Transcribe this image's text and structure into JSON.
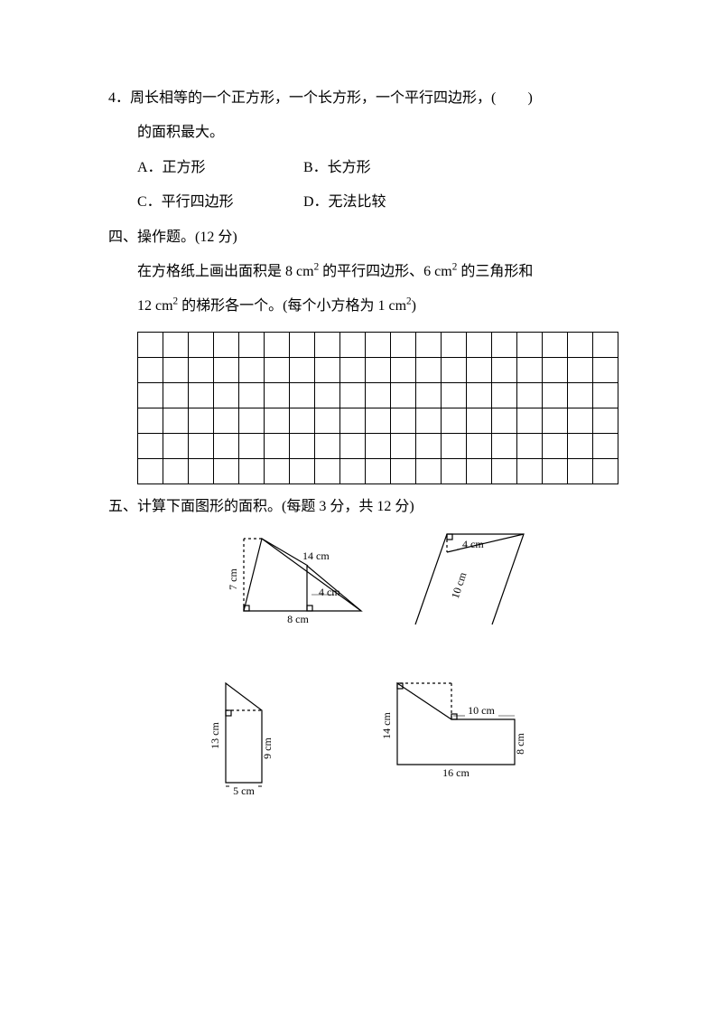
{
  "q4": {
    "num": "4．",
    "stem_a": "周长相等的一个正方形，一个长方形，一个平行四边形，(",
    "stem_blank": "　　",
    "stem_b": ")",
    "stem_line2": "的面积最大。",
    "optA": "A．正方形",
    "optB": "B．长方形",
    "optC": "C．平行四边形",
    "optD": "D．无法比较"
  },
  "s4": {
    "title": "四、操作题。(12 分)",
    "body_a": "在方格纸上画出面积是 8 cm",
    "sq": "2",
    "body_b": " 的平行四边形、6 cm",
    "body_c": " 的三角形和",
    "body_line2_a": "12 cm",
    "body_line2_b": " 的梯形各一个。(每个小方格为 1 cm",
    "body_line2_c": ")",
    "grid_cols": 19,
    "grid_rows": 6
  },
  "s5": {
    "title": "五、计算下面图形的面积。(每题 3 分，共 12 分)",
    "fig1": {
      "l_7cm": "7 cm",
      "l_14cm": "14 cm",
      "l_4cm": "4 cm",
      "l_8cm": "8 cm"
    },
    "fig2": {
      "l_4cm": "4 cm",
      "l_10cm": "10 cm"
    },
    "fig3": {
      "l_13cm": "13 cm",
      "l_9cm": "9 cm",
      "l_5cm": "5 cm"
    },
    "fig4": {
      "l_10cm": "10 cm",
      "l_8cm": "8 cm",
      "l_14cm": "14 cm",
      "l_16cm": "16 cm"
    }
  },
  "style": {
    "stroke": "#000",
    "dash": "3,3",
    "sw": 1.2
  }
}
